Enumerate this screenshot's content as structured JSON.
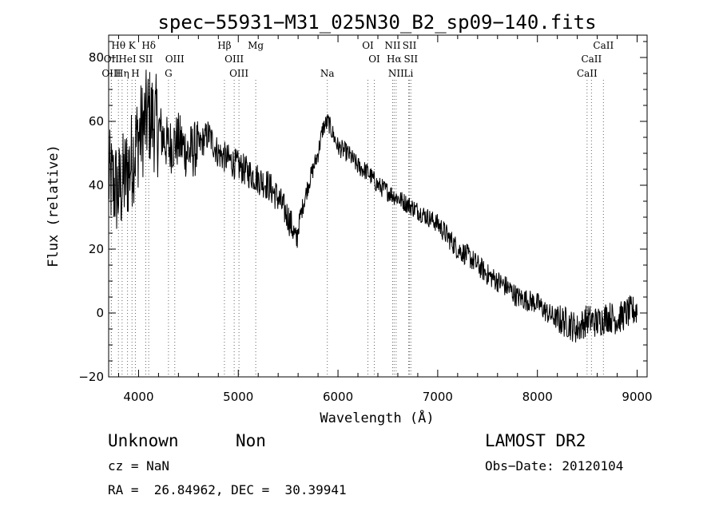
{
  "chart_data": {
    "type": "line",
    "title": "spec−55931−M31_025N30_B2_sp09−140.fits",
    "xlabel": "Wavelength (Å)",
    "ylabel": "Flux (relative)",
    "xlim": [
      3700,
      9100
    ],
    "ylim": [
      -20,
      87
    ],
    "xticks": [
      4000,
      5000,
      6000,
      7000,
      8000,
      9000
    ],
    "yticks": [
      -20,
      0,
      20,
      40,
      60,
      80
    ],
    "xtick_labels": [
      "4000",
      "5000",
      "6000",
      "7000",
      "8000",
      "9000"
    ],
    "ytick_labels": [
      "−20",
      "0",
      "20",
      "40",
      "60",
      "80"
    ],
    "grid": false,
    "legend": "none",
    "line_color": "#000000",
    "spectrum_anchors": {
      "wavelength": [
        3700,
        3800,
        3900,
        4000,
        4100,
        4200,
        4300,
        4400,
        4500,
        4600,
        4700,
        4800,
        4900,
        5000,
        5100,
        5200,
        5300,
        5400,
        5500,
        5550,
        5580,
        5620,
        5700,
        5800,
        5850,
        5900,
        6000,
        6100,
        6200,
        6300,
        6400,
        6500,
        6600,
        6700,
        6800,
        6900,
        7000,
        7100,
        7200,
        7300,
        7400,
        7500,
        7600,
        7700,
        7800,
        7900,
        8000,
        8100,
        8200,
        8300,
        8400,
        8500,
        8600,
        8700,
        8800,
        8900,
        9000
      ],
      "flux": [
        42,
        38,
        45,
        55,
        62,
        58,
        52,
        54,
        50,
        52,
        56,
        50,
        48,
        46,
        44,
        42,
        40,
        36,
        30,
        26,
        22,
        30,
        40,
        50,
        58,
        60,
        52,
        50,
        46,
        44,
        40,
        38,
        36,
        34,
        32,
        30,
        28,
        24,
        20,
        18,
        15,
        12,
        10,
        8,
        5,
        4,
        3,
        0,
        -2,
        -3,
        -5,
        -2,
        -3,
        -1,
        -2,
        0,
        1
      ]
    },
    "spectral_lines": [
      {
        "label": "Hθ",
        "wavelength": 3798,
        "row": 0
      },
      {
        "label": "K",
        "wavelength": 3934,
        "row": 0
      },
      {
        "label": "Hδ",
        "wavelength": 4102,
        "row": 0
      },
      {
        "label": "Hβ",
        "wavelength": 4861,
        "row": 0
      },
      {
        "label": "Mg",
        "wavelength": 5175,
        "row": 0
      },
      {
        "label": "OI",
        "wavelength": 6300,
        "row": 0
      },
      {
        "label": "NII",
        "wavelength": 6548,
        "row": 0
      },
      {
        "label": "SII",
        "wavelength": 6717,
        "row": 0
      },
      {
        "label": "CaII",
        "wavelength": 8662,
        "row": 0
      },
      {
        "label": "OII",
        "wavelength": 3727,
        "row": 1
      },
      {
        "label": "HeI",
        "wavelength": 3889,
        "row": 1
      },
      {
        "label": "SII",
        "wavelength": 4072,
        "row": 1
      },
      {
        "label": "OIII",
        "wavelength": 4363,
        "row": 1
      },
      {
        "label": "OIII",
        "wavelength": 4959,
        "row": 1
      },
      {
        "label": "OI",
        "wavelength": 6364,
        "row": 1
      },
      {
        "label": "Hα",
        "wavelength": 6563,
        "row": 1
      },
      {
        "label": "SII",
        "wavelength": 6731,
        "row": 1
      },
      {
        "label": "CaII",
        "wavelength": 8542,
        "row": 1
      },
      {
        "label": "OIII",
        "wavelength": 3727,
        "row": 2
      },
      {
        "label": "Hη",
        "wavelength": 3835,
        "row": 2
      },
      {
        "label": "H",
        "wavelength": 3968,
        "row": 2
      },
      {
        "label": "G",
        "wavelength": 4300,
        "row": 2
      },
      {
        "label": "OIII",
        "wavelength": 5007,
        "row": 2
      },
      {
        "label": "Na",
        "wavelength": 5893,
        "row": 2
      },
      {
        "label": "NII",
        "wavelength": 6583,
        "row": 2
      },
      {
        "label": "Li",
        "wavelength": 6708,
        "row": 2
      },
      {
        "label": "CaII",
        "wavelength": 8498,
        "row": 2
      }
    ]
  },
  "footer": {
    "object_type": "Unknown",
    "subclass": "Non",
    "survey": "LAMOST DR2",
    "cz": "cz = NaN",
    "obs_date": "Obs−Date: 20120104",
    "coords": "RA =  26.84962, DEC =  30.39941"
  }
}
